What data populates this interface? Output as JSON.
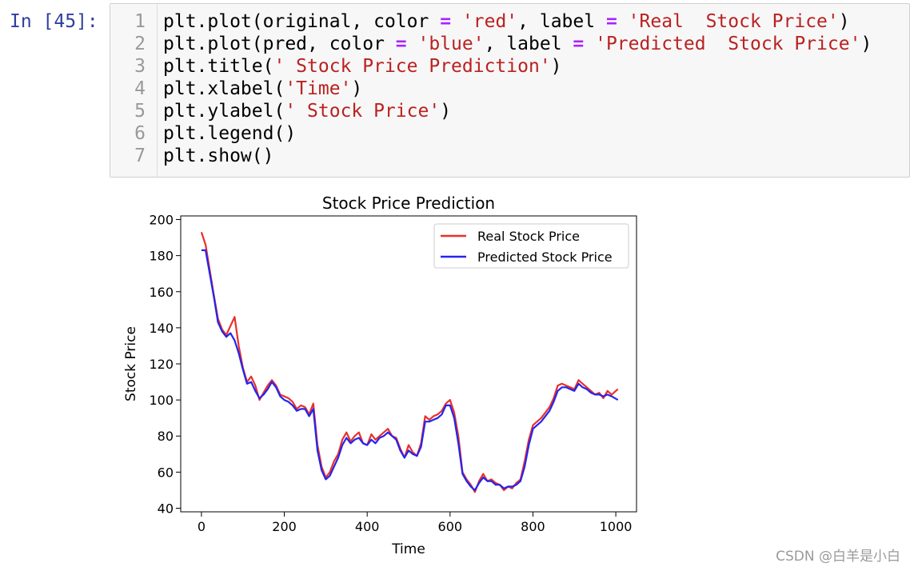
{
  "prompt": "In [45]:",
  "code_lines": [
    {
      "n": "1",
      "parts": [
        [
          "plt.plot(original, color ",
          "plain"
        ],
        [
          "=",
          "op"
        ],
        [
          " ",
          "plain"
        ],
        [
          "'red'",
          "str"
        ],
        [
          ", label ",
          "plain"
        ],
        [
          "=",
          "op"
        ],
        [
          " ",
          "plain"
        ],
        [
          "'Real  Stock Price'",
          "str"
        ],
        [
          ")",
          "plain"
        ]
      ]
    },
    {
      "n": "2",
      "parts": [
        [
          "plt.plot(pred, color ",
          "plain"
        ],
        [
          "=",
          "op"
        ],
        [
          " ",
          "plain"
        ],
        [
          "'blue'",
          "str"
        ],
        [
          ", label ",
          "plain"
        ],
        [
          "=",
          "op"
        ],
        [
          " ",
          "plain"
        ],
        [
          "'Predicted  Stock Price'",
          "str"
        ],
        [
          ")",
          "plain"
        ]
      ]
    },
    {
      "n": "3",
      "parts": [
        [
          "plt.title(",
          "plain"
        ],
        [
          "' Stock Price Prediction'",
          "str"
        ],
        [
          ")",
          "plain"
        ]
      ]
    },
    {
      "n": "4",
      "parts": [
        [
          "plt.xlabel(",
          "plain"
        ],
        [
          "'Time'",
          "str"
        ],
        [
          ")",
          "plain"
        ]
      ]
    },
    {
      "n": "5",
      "parts": [
        [
          "plt.ylabel(",
          "plain"
        ],
        [
          "' Stock Price'",
          "str"
        ],
        [
          ")",
          "plain"
        ]
      ]
    },
    {
      "n": "6",
      "parts": [
        [
          "plt.legend()",
          "plain"
        ]
      ]
    },
    {
      "n": "7",
      "parts": [
        [
          "plt.show()",
          "plain"
        ]
      ]
    }
  ],
  "watermark": "CSDN @白羊是小白",
  "chart_data": {
    "type": "line",
    "title": "Stock Price Prediction",
    "xlabel": "Time",
    "ylabel": "Stock Price",
    "xlim": [
      -50,
      1050
    ],
    "ylim": [
      38,
      202
    ],
    "xticks": [
      0,
      200,
      400,
      600,
      800,
      1000
    ],
    "yticks": [
      40,
      60,
      80,
      100,
      120,
      140,
      160,
      180,
      200
    ],
    "grid": false,
    "legend_position": "top-right",
    "x": [
      0,
      10,
      20,
      30,
      40,
      50,
      60,
      70,
      80,
      90,
      100,
      110,
      120,
      130,
      140,
      150,
      160,
      170,
      180,
      190,
      200,
      210,
      220,
      230,
      240,
      250,
      260,
      270,
      280,
      290,
      300,
      310,
      320,
      330,
      340,
      350,
      360,
      370,
      380,
      390,
      400,
      410,
      420,
      430,
      440,
      450,
      460,
      470,
      480,
      490,
      500,
      510,
      520,
      530,
      540,
      550,
      560,
      570,
      580,
      590,
      600,
      610,
      620,
      630,
      640,
      650,
      660,
      670,
      680,
      690,
      700,
      710,
      720,
      730,
      740,
      750,
      760,
      770,
      780,
      790,
      800,
      810,
      820,
      830,
      840,
      850,
      860,
      870,
      880,
      890,
      900,
      910,
      920,
      930,
      940,
      950,
      960,
      970,
      980,
      990,
      1005
    ],
    "series": [
      {
        "name": "Real  Stock Price",
        "color": "#e8302a",
        "values": [
          193,
          186,
          172,
          158,
          145,
          139,
          136,
          141,
          146,
          130,
          118,
          110,
          113,
          108,
          100,
          104,
          108,
          111,
          108,
          103,
          102,
          101,
          99,
          95,
          97,
          96,
          92,
          98,
          75,
          63,
          57,
          60,
          66,
          70,
          78,
          82,
          77,
          80,
          82,
          76,
          75,
          81,
          78,
          80,
          82,
          84,
          80,
          79,
          73,
          68,
          75,
          71,
          69,
          76,
          91,
          89,
          91,
          92,
          94,
          98,
          100,
          93,
          80,
          60,
          56,
          53,
          49,
          55,
          59,
          55,
          56,
          54,
          53,
          50,
          52,
          51,
          54,
          56,
          66,
          78,
          86,
          88,
          90,
          93,
          96,
          101,
          108,
          109,
          108,
          107,
          106,
          111,
          109,
          107,
          105,
          103,
          104,
          101,
          105,
          103,
          106
        ]
      },
      {
        "name": "Predicted  Stock Price",
        "color": "#2424f0",
        "values": [
          183,
          183,
          170,
          157,
          143,
          138,
          135,
          137,
          133,
          126,
          117,
          109,
          110,
          105,
          101,
          103,
          106,
          110,
          107,
          102,
          100,
          99,
          97,
          94,
          95,
          95,
          91,
          95,
          72,
          61,
          56,
          58,
          63,
          68,
          75,
          79,
          76,
          78,
          79,
          76,
          75,
          78,
          76,
          79,
          80,
          82,
          80,
          78,
          72,
          68,
          72,
          70,
          69,
          74,
          88,
          88,
          89,
          90,
          92,
          97,
          97,
          90,
          76,
          59,
          55,
          52,
          50,
          54,
          57,
          55,
          55,
          53,
          53,
          51,
          52,
          52,
          53,
          55,
          63,
          75,
          84,
          86,
          88,
          91,
          94,
          99,
          105,
          107,
          107,
          106,
          105,
          109,
          107,
          106,
          104,
          103,
          103,
          102,
          103,
          102,
          100
        ]
      }
    ]
  }
}
